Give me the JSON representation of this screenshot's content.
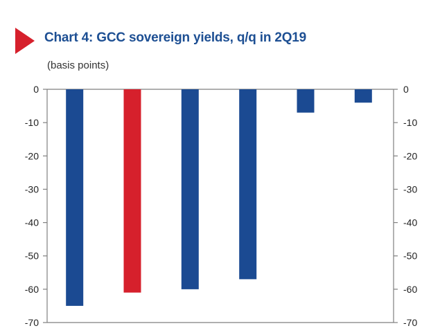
{
  "chart_data": {
    "type": "bar",
    "title": "Chart 4: GCC sovereign yields, q/q in 2Q19",
    "subtitle": "(basis points)",
    "xlabel": "",
    "ylabel": "",
    "ylim": [
      -70,
      0
    ],
    "yticks": [
      0,
      -10,
      -20,
      -30,
      -40,
      -50,
      -60,
      -70
    ],
    "categories": [
      "",
      "",
      "",
      "",
      "",
      ""
    ],
    "values": [
      -65,
      -61,
      -60,
      -57,
      -7,
      -4
    ],
    "bar_colors": [
      "#1b4a92",
      "#d6202c",
      "#1b4a92",
      "#1b4a92",
      "#1b4a92",
      "#1b4a92"
    ],
    "grid": false,
    "legend": "none",
    "secondary_axis": true
  },
  "style": {
    "marker_color": "#d6202c",
    "title_color": "#1d4f93",
    "axis_color": "#7f7f7f"
  }
}
